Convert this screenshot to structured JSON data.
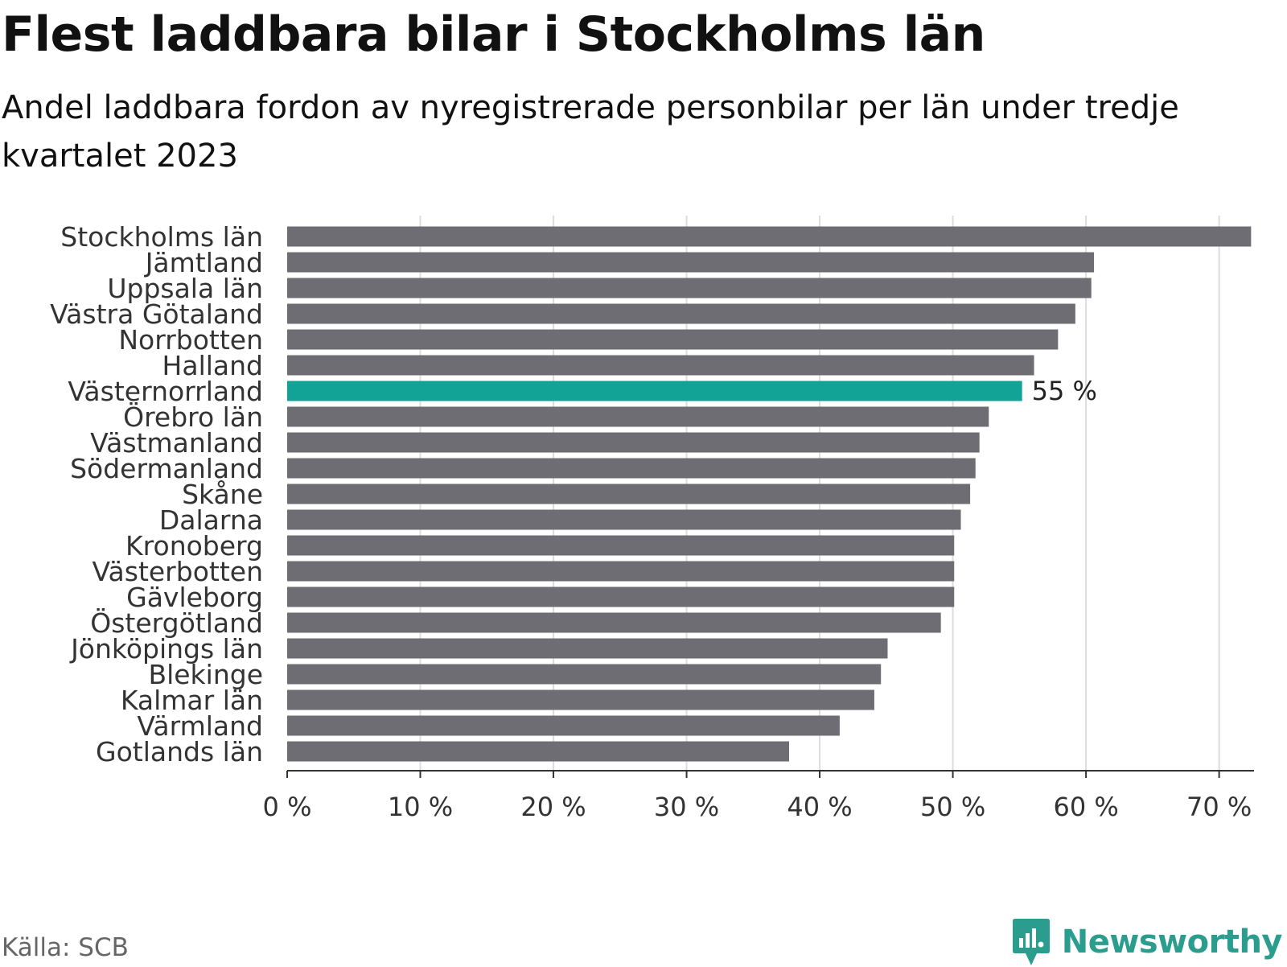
{
  "title": "Flest laddbara bilar i Stockholms län",
  "subtitle": "Andel laddbara fordon av nyregistrerade personbilar per län under tredje kvartalet 2023",
  "source": "Källa: SCB",
  "brand": "Newsworthy",
  "colors": {
    "bar": "#6e6d73",
    "highlight": "#12a396",
    "grid": "#dddddd",
    "axis": "#333333",
    "text": "#333333",
    "brand": "#2a9d8f"
  },
  "chart_data": {
    "type": "bar",
    "orientation": "horizontal",
    "categories": [
      "Stockholms län",
      "Jämtland",
      "Uppsala län",
      "Västra Götaland",
      "Norrbotten",
      "Halland",
      "Västernorrland",
      "Örebro län",
      "Västmanland",
      "Södermanland",
      "Skåne",
      "Dalarna",
      "Kronoberg",
      "Västerbotten",
      "Gävleborg",
      "Östergötland",
      "Jönköpings län",
      "Blekinge",
      "Kalmar län",
      "Värmland",
      "Gotlands län"
    ],
    "values": [
      72.4,
      60.6,
      60.4,
      59.2,
      57.9,
      56.1,
      55.2,
      52.7,
      52.0,
      51.7,
      51.3,
      50.6,
      50.1,
      50.1,
      50.1,
      49.1,
      45.1,
      44.6,
      44.1,
      41.5,
      37.7
    ],
    "highlight": "Västernorrland",
    "highlight_label": "55 %",
    "xlim": [
      0,
      72.5
    ],
    "xticks": [
      0,
      10,
      20,
      30,
      40,
      50,
      60,
      70
    ],
    "xtick_labels": [
      "0 %",
      "10 %",
      "20 %",
      "30 %",
      "40 %",
      "50 %",
      "60 %",
      "70 %"
    ],
    "grid": true,
    "title": "Flest laddbara bilar i Stockholms län",
    "xlabel": "",
    "ylabel": ""
  }
}
